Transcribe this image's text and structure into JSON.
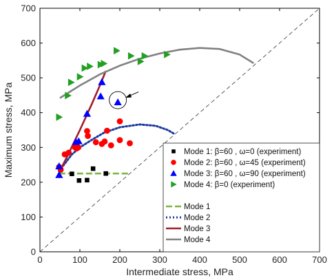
{
  "chart_data": {
    "type": "scatter",
    "xlabel": "Intermediate stress, MPa",
    "ylabel": "Maximum stress, MPa",
    "xlim": [
      0,
      700
    ],
    "ylim": [
      0,
      700
    ],
    "xticks": [
      0,
      100,
      200,
      300,
      400,
      500,
      600,
      700
    ],
    "yticks": [
      0,
      100,
      200,
      300,
      400,
      500,
      600,
      700
    ],
    "grid": false,
    "legend_position": "bottom-right",
    "reference_line": {
      "style": "dashed",
      "color": "#333333",
      "from": [
        0,
        0
      ],
      "to": [
        700,
        700
      ]
    },
    "annotations": [
      {
        "type": "circle-with-arrow",
        "point": [
          195,
          430
        ]
      }
    ],
    "series": [
      {
        "name": "Mode 1: β=60 , ω=0 (experiment)",
        "kind": "scatter",
        "marker": "square",
        "color": "#000000",
        "x": [
          80,
          98,
          118,
          133,
          165
        ],
        "y": [
          224,
          205,
          206,
          239,
          225
        ]
      },
      {
        "name": "Mode 2: β=60 , ω=45 (experiment)",
        "kind": "scatter",
        "marker": "circle",
        "color": "#ff0000",
        "x": [
          48,
          52,
          62,
          72,
          88,
          92,
          96,
          118,
          120,
          140,
          155,
          162,
          168,
          178,
          200,
          200,
          225
        ],
        "y": [
          244,
          236,
          280,
          285,
          300,
          297,
          300,
          347,
          333,
          315,
          310,
          317,
          348,
          306,
          375,
          321,
          312
        ]
      },
      {
        "name": "Mode 3: β=60 , ω=90 (experiment)",
        "kind": "scatter",
        "marker": "triangle-up",
        "color": "#0000ff",
        "x": [
          48,
          48,
          90,
          97,
          118,
          152,
          155,
          195
        ],
        "y": [
          221,
          246,
          316,
          318,
          397,
          447,
          488,
          430
        ]
      },
      {
        "name": "Mode 4: β=0 (experiment)",
        "kind": "scatter",
        "marker": "triangle-right",
        "color": "#22a022",
        "x": [
          48,
          70,
          78,
          100,
          112,
          125,
          152,
          160,
          192,
          228,
          252,
          262,
          318
        ],
        "y": [
          387,
          449,
          487,
          503,
          528,
          533,
          538,
          541,
          578,
          563,
          547,
          563,
          567
        ]
      },
      {
        "name": "Mode 1",
        "kind": "line",
        "style": "dashed",
        "color": "#7cb342",
        "x": [
          48,
          225
        ],
        "y": [
          225,
          225
        ]
      },
      {
        "name": "Mode 2",
        "kind": "line",
        "style": "dotted",
        "color": "#1a3aa0",
        "x": [
          48,
          80,
          100,
          130,
          160,
          200,
          250,
          290,
          320,
          335
        ],
        "y": [
          232,
          280,
          300,
          322,
          342,
          358,
          366,
          362,
          350,
          340
        ]
      },
      {
        "name": "Mode 3",
        "kind": "line",
        "style": "solid",
        "color": "#a01c2c",
        "x": [
          48,
          70,
          100,
          130,
          150,
          165
        ],
        "y": [
          228,
          278,
          350,
          425,
          478,
          520
        ]
      },
      {
        "name": "Mode 4",
        "kind": "line",
        "style": "solid",
        "color": "#808080",
        "x": [
          50,
          100,
          150,
          200,
          250,
          300,
          350,
          400,
          450,
          500,
          535
        ],
        "y": [
          442,
          478,
          510,
          535,
          555,
          570,
          581,
          586,
          583,
          567,
          542
        ]
      }
    ]
  }
}
